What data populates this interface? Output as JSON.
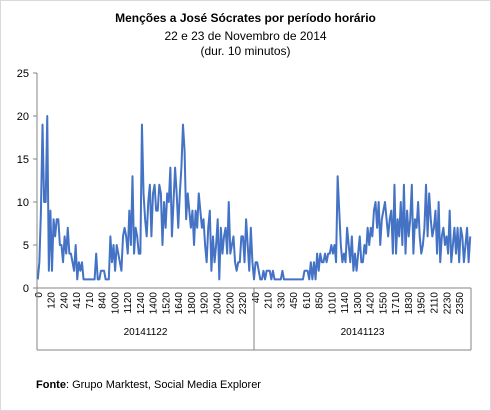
{
  "chart_data": {
    "type": "line",
    "title": "Menções a José Sócrates por período horário",
    "subtitle_lines": [
      "22 e 23 de Novembro de 2014",
      "(dur. 10 minutos)"
    ],
    "ylim": [
      0,
      25
    ],
    "yticks": [
      0,
      5,
      10,
      15,
      20,
      25
    ],
    "grid": false,
    "legend": "none",
    "line_color": "#4472c4",
    "groups": [
      {
        "label": "20141122",
        "tick_labels": [
          "0",
          "120",
          "240",
          "410",
          "710",
          "840",
          "1000",
          "1120",
          "1240",
          "1400",
          "1520",
          "1640",
          "1800",
          "1920",
          "2040",
          "2200",
          "2320"
        ]
      },
      {
        "label": "20141123",
        "tick_labels": [
          "40",
          "210",
          "330",
          "450",
          "610",
          "850",
          "1010",
          "1140",
          "1300",
          "1420",
          "1550",
          "1710",
          "1830",
          "1950",
          "2110",
          "2230",
          "2350"
        ]
      }
    ],
    "series": [
      {
        "values": [
          1,
          3,
          9,
          19,
          10,
          10,
          20,
          2,
          9,
          2,
          8,
          6,
          8,
          8,
          5,
          5,
          3,
          6,
          4,
          7,
          4,
          4,
          3,
          2,
          5,
          1,
          3,
          2,
          3,
          1,
          1,
          1,
          1,
          1,
          1,
          1,
          1,
          4,
          1,
          1,
          2,
          2,
          2,
          1,
          1,
          1,
          6,
          3,
          5,
          2,
          5,
          4,
          3,
          2,
          6,
          7,
          6,
          4,
          9,
          5,
          13,
          4,
          7,
          6,
          4,
          4,
          19,
          11,
          8,
          6,
          10,
          12,
          6,
          11,
          12,
          9,
          9,
          12,
          11,
          5,
          10,
          7,
          11,
          10,
          14,
          6,
          10,
          14,
          11,
          7,
          11,
          14,
          19,
          16,
          8,
          11,
          9,
          7,
          9,
          5,
          9,
          7,
          11,
          9,
          7,
          8,
          5,
          3,
          7,
          9,
          2,
          6,
          3,
          5,
          8,
          1,
          7,
          4,
          6,
          7,
          4,
          10,
          4,
          5,
          6,
          3,
          2,
          3,
          3,
          6,
          6,
          3,
          8,
          5,
          2,
          7,
          3,
          1,
          3,
          3,
          2,
          1,
          1,
          2,
          1,
          2,
          2,
          2,
          1,
          2,
          1,
          1,
          1,
          1,
          1,
          2,
          1,
          1,
          1,
          1,
          1,
          1,
          1,
          1,
          1,
          1,
          1,
          1,
          1,
          2,
          2,
          2,
          1,
          3,
          1,
          3,
          1,
          4,
          2,
          4,
          3,
          3,
          4,
          3,
          4,
          4,
          5,
          4,
          5,
          3,
          13,
          9,
          5,
          3,
          4,
          3,
          7,
          5,
          3,
          6,
          2,
          4,
          2,
          4,
          6,
          3,
          3,
          5,
          4,
          7,
          5,
          7,
          6,
          9,
          10,
          7,
          10,
          5,
          8,
          9,
          10,
          8,
          6,
          8,
          9,
          4,
          12,
          4,
          8,
          6,
          10,
          5,
          12,
          4,
          9,
          6,
          8,
          12,
          4,
          8,
          7,
          10,
          6,
          4,
          5,
          7,
          12,
          6,
          11,
          8,
          6,
          7,
          9,
          4,
          10,
          3,
          6,
          7,
          5,
          6,
          4,
          9,
          3,
          5,
          7,
          4,
          7,
          3,
          7,
          6,
          3,
          5,
          7,
          3,
          6
        ]
      }
    ]
  },
  "footnote": {
    "label": "Fonte",
    "text": ": Grupo Marktest, Social Media Explorer"
  }
}
